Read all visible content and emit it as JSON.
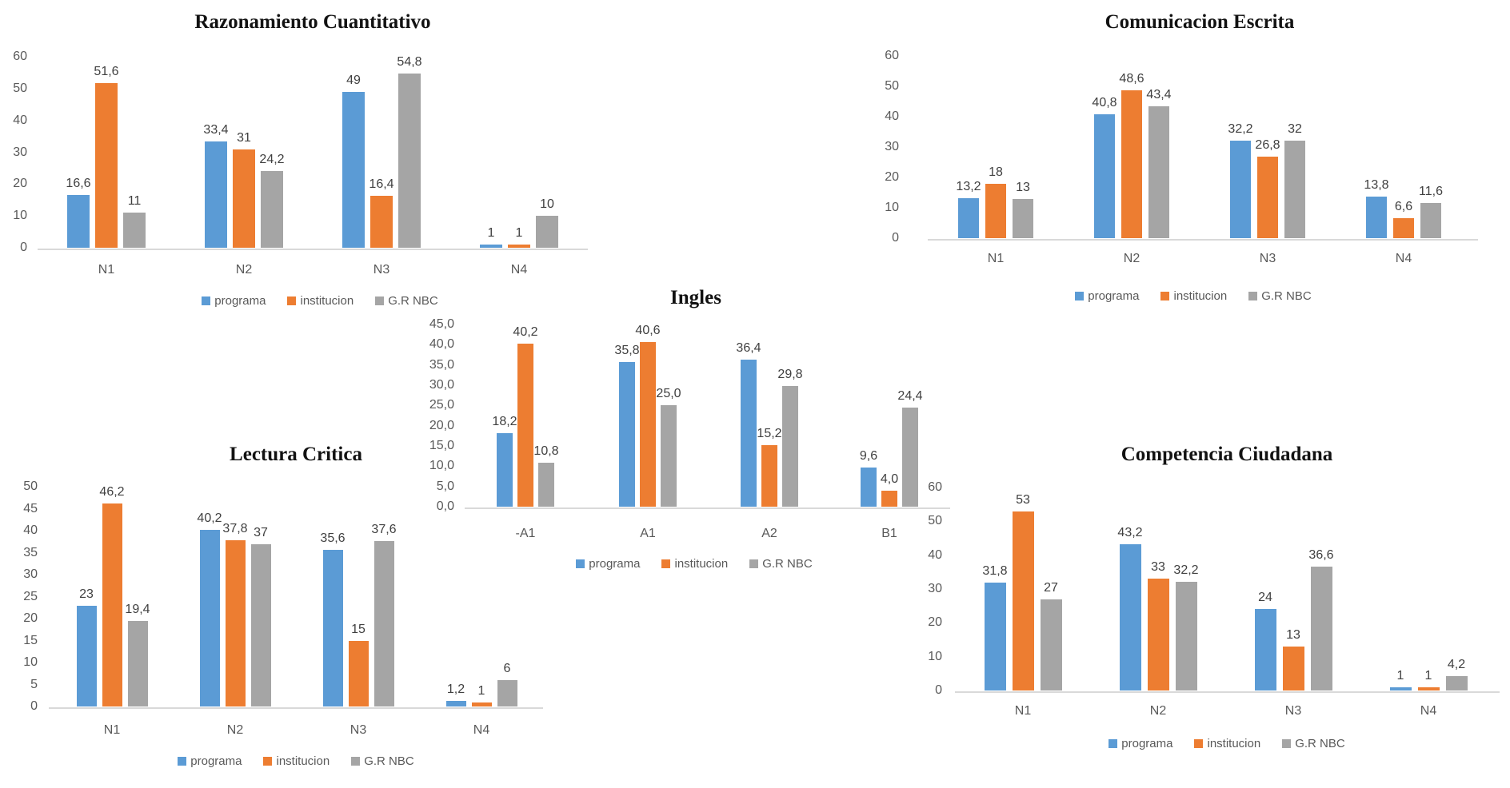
{
  "styles": {
    "background": "#ffffff",
    "axis_line_color": "#D9D9D9",
    "tick_text_color": "#595959",
    "data_label_color": "#404040",
    "title_color": "#121212"
  },
  "series_palette": {
    "programa": "#5B9BD5",
    "institucion": "#ED7D31",
    "G.R NBC": "#A5A5A5"
  },
  "chart_data": [
    {
      "type": "bar",
      "title": "Razonamiento Cuantitativo",
      "categories": [
        "N1",
        "N2",
        "N3",
        "N4"
      ],
      "series": [
        {
          "name": "programa",
          "color": "#5B9BD5",
          "values": [
            16.6,
            33.4,
            49,
            1
          ],
          "labels": [
            "16,6",
            "33,4",
            "49",
            "1"
          ]
        },
        {
          "name": "institucion",
          "color": "#ED7D31",
          "values": [
            51.6,
            31,
            16.4,
            1
          ],
          "labels": [
            "51,6",
            "31",
            "16,4",
            "1"
          ]
        },
        {
          "name": "G.R NBC",
          "color": "#A5A5A5",
          "values": [
            11,
            24.2,
            54.8,
            10
          ],
          "labels": [
            "11",
            "24,2",
            "54,8",
            "10"
          ]
        }
      ],
      "xlabel": "",
      "ylabel": "",
      "ylim": [
        0,
        60
      ],
      "ytick_step": 10,
      "ytick_labels": [
        "0",
        "10",
        "20",
        "30",
        "40",
        "50",
        "60"
      ],
      "grid": false,
      "legend": [
        "programa",
        "institucion",
        "G.R NBC"
      ],
      "legend_position": "bottom"
    },
    {
      "type": "bar",
      "title": "Comunicacion Escrita",
      "categories": [
        "N1",
        "N2",
        "N3",
        "N4"
      ],
      "series": [
        {
          "name": "programa",
          "color": "#5B9BD5",
          "values": [
            13.2,
            40.8,
            32.2,
            13.8
          ],
          "labels": [
            "13,2",
            "40,8",
            "32,2",
            "13,8"
          ]
        },
        {
          "name": "institucion",
          "color": "#ED7D31",
          "values": [
            18,
            48.6,
            26.8,
            6.6
          ],
          "labels": [
            "18",
            "48,6",
            "26,8",
            "6,6"
          ]
        },
        {
          "name": "G.R NBC",
          "color": "#A5A5A5",
          "values": [
            13,
            43.4,
            32,
            11.6
          ],
          "labels": [
            "13",
            "43,4",
            "32",
            "11,6"
          ]
        }
      ],
      "xlabel": "",
      "ylabel": "",
      "ylim": [
        0,
        60
      ],
      "ytick_step": 10,
      "ytick_labels": [
        "0",
        "10",
        "20",
        "30",
        "40",
        "50",
        "60"
      ],
      "grid": false,
      "legend": [
        "programa",
        "institucion",
        "G.R NBC"
      ],
      "legend_position": "bottom"
    },
    {
      "type": "bar",
      "title": "Ingles",
      "categories": [
        "-A1",
        "A1",
        "A2",
        "B1"
      ],
      "series": [
        {
          "name": "programa",
          "color": "#5B9BD5",
          "values": [
            18.2,
            35.8,
            36.4,
            9.6
          ],
          "labels": [
            "18,2",
            "35,8",
            "36,4",
            "9,6"
          ]
        },
        {
          "name": "institucion",
          "color": "#ED7D31",
          "values": [
            40.2,
            40.6,
            15.2,
            4.0
          ],
          "labels": [
            "40,2",
            "40,6",
            "15,2",
            "4,0"
          ]
        },
        {
          "name": "G.R NBC",
          "color": "#A5A5A5",
          "values": [
            10.8,
            25.0,
            29.8,
            24.4
          ],
          "labels": [
            "10,8",
            "25,0",
            "29,8",
            "24,4"
          ]
        }
      ],
      "xlabel": "",
      "ylabel": "",
      "ylim": [
        0,
        45
      ],
      "ytick_step": 5,
      "ytick_labels": [
        "0,0",
        "5,0",
        "10,0",
        "15,0",
        "20,0",
        "25,0",
        "30,0",
        "35,0",
        "40,0",
        "45,0"
      ],
      "grid": false,
      "legend": [
        "programa",
        "institucion",
        "G.R NBC"
      ],
      "legend_position": "bottom"
    },
    {
      "type": "bar",
      "title": "Lectura Critica",
      "categories": [
        "N1",
        "N2",
        "N3",
        "N4"
      ],
      "series": [
        {
          "name": "programa",
          "color": "#5B9BD5",
          "values": [
            23,
            40.2,
            35.6,
            1.2
          ],
          "labels": [
            "23",
            "40,2",
            "35,6",
            "1,2"
          ]
        },
        {
          "name": "institucion",
          "color": "#ED7D31",
          "values": [
            46.2,
            37.8,
            15,
            1
          ],
          "labels": [
            "46,2",
            "37,8",
            "15",
            "1"
          ]
        },
        {
          "name": "G.R NBC",
          "color": "#A5A5A5",
          "values": [
            19.4,
            37,
            37.6,
            6
          ],
          "labels": [
            "19,4",
            "37",
            "37,6",
            "6"
          ]
        }
      ],
      "xlabel": "",
      "ylabel": "",
      "ylim": [
        0,
        50
      ],
      "ytick_step": 5,
      "ytick_labels": [
        "0",
        "5",
        "10",
        "15",
        "20",
        "25",
        "30",
        "35",
        "40",
        "45",
        "50"
      ],
      "grid": false,
      "legend": [
        "programa",
        "institucion",
        "G.R NBC"
      ],
      "legend_position": "bottom"
    },
    {
      "type": "bar",
      "title": "Competencia Ciudadana",
      "categories": [
        "N1",
        "N2",
        "N3",
        "N4"
      ],
      "series": [
        {
          "name": "programa",
          "color": "#5B9BD5",
          "values": [
            31.8,
            43.2,
            24,
            1
          ],
          "labels": [
            "31,8",
            "43,2",
            "24",
            "1"
          ]
        },
        {
          "name": "institucion",
          "color": "#ED7D31",
          "values": [
            53,
            33,
            13,
            1
          ],
          "labels": [
            "53",
            "33",
            "13",
            "1"
          ]
        },
        {
          "name": "G.R NBC",
          "color": "#A5A5A5",
          "values": [
            27,
            32.2,
            36.6,
            4.2
          ],
          "labels": [
            "27",
            "32,2",
            "36,6",
            "4,2"
          ]
        }
      ],
      "xlabel": "",
      "ylabel": "",
      "ylim": [
        0,
        60
      ],
      "ytick_step": 10,
      "ytick_labels": [
        "0",
        "10",
        "20",
        "30",
        "40",
        "50",
        "60"
      ],
      "grid": false,
      "legend": [
        "programa",
        "institucion",
        "G.R NBC"
      ],
      "legend_position": "bottom"
    }
  ]
}
